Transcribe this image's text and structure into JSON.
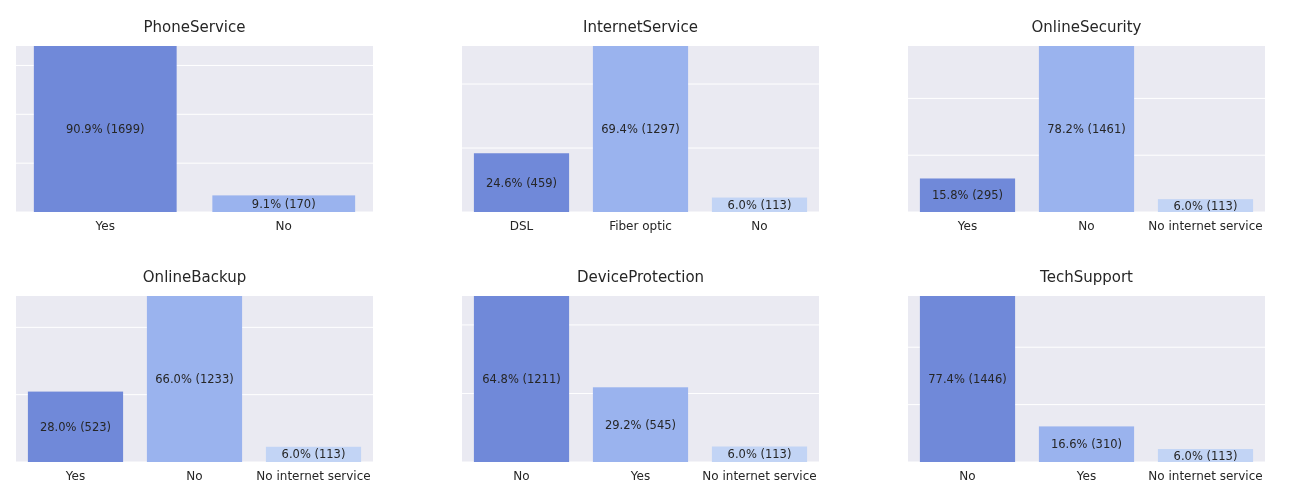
{
  "chart_data": [
    {
      "type": "bar",
      "title": "PhoneService",
      "categories": [
        "Yes",
        "No"
      ],
      "values": [
        1699,
        170
      ],
      "colors": [
        "#7089d9",
        "#9ab3ee"
      ],
      "value_labels": [
        "90.9% (1699)",
        "9.1% (170)"
      ],
      "ylim": [
        0,
        1699
      ],
      "yticks": [
        {
          "value": 0,
          "label": null
        },
        {
          "value": 500,
          "label": null
        },
        {
          "value": 1000,
          "label": null
        },
        {
          "value": 1500,
          "label": null
        }
      ],
      "grid": "y",
      "tick_labels": "x"
    },
    {
      "type": "bar",
      "title": "InternetService",
      "categories": [
        "DSL",
        "Fiber optic",
        "No"
      ],
      "values": [
        459,
        1297,
        113
      ],
      "colors": [
        "#7089d9",
        "#9ab3ee",
        "#c2d4f5"
      ],
      "value_labels": [
        "24.6% (459)",
        "69.4% (1297)",
        "6.0% (113)"
      ],
      "ylim": [
        0,
        1297
      ],
      "yticks": [
        {
          "value": 0,
          "label": null
        },
        {
          "value": 500,
          "label": null
        },
        {
          "value": 1000,
          "label": null
        }
      ],
      "grid": "y",
      "tick_labels": "x"
    },
    {
      "type": "bar",
      "title": "OnlineSecurity",
      "categories": [
        "Yes",
        "No",
        "No internet service"
      ],
      "values": [
        295,
        1461,
        113
      ],
      "colors": [
        "#7089d9",
        "#9ab3ee",
        "#c2d4f5"
      ],
      "value_labels": [
        "15.8% (295)",
        "78.2% (1461)",
        "6.0% (113)"
      ],
      "ylim": [
        0,
        1461
      ],
      "yticks": [
        {
          "value": 0,
          "label": null
        },
        {
          "value": 500,
          "label": null
        },
        {
          "value": 1000,
          "label": null
        }
      ],
      "grid": "y",
      "tick_labels": "x"
    },
    {
      "type": "bar",
      "title": "OnlineBackup",
      "categories": [
        "Yes",
        "No",
        "No internet service"
      ],
      "values": [
        523,
        1233,
        113
      ],
      "colors": [
        "#7089d9",
        "#9ab3ee",
        "#c2d4f5"
      ],
      "value_labels": [
        "28.0% (523)",
        "66.0% (1233)",
        "6.0% (113)"
      ],
      "ylim": [
        0,
        1233
      ],
      "yticks": [
        {
          "value": 0,
          "label": null
        },
        {
          "value": 500,
          "label": null
        },
        {
          "value": 1000,
          "label": null
        }
      ],
      "grid": "y",
      "tick_labels": "x"
    },
    {
      "type": "bar",
      "title": "DeviceProtection",
      "categories": [
        "No",
        "Yes",
        "No internet service"
      ],
      "values": [
        1211,
        545,
        113
      ],
      "colors": [
        "#7089d9",
        "#9ab3ee",
        "#c2d4f5"
      ],
      "value_labels": [
        "64.8% (1211)",
        "29.2% (545)",
        "6.0% (113)"
      ],
      "ylim": [
        0,
        1211
      ],
      "yticks": [
        {
          "value": 0,
          "label": null
        },
        {
          "value": 500,
          "label": null
        },
        {
          "value": 1000,
          "label": null
        }
      ],
      "grid": "y",
      "tick_labels": "x"
    },
    {
      "type": "bar",
      "title": "TechSupport",
      "categories": [
        "No",
        "Yes",
        "No internet service"
      ],
      "values": [
        1446,
        310,
        113
      ],
      "colors": [
        "#7089d9",
        "#9ab3ee",
        "#c2d4f5"
      ],
      "value_labels": [
        "77.4% (1446)",
        "16.6% (310)",
        "6.0% (113)"
      ],
      "ylim": [
        0,
        1446
      ],
      "yticks": [
        {
          "value": 0,
          "label": null
        },
        {
          "value": 500,
          "label": null
        },
        {
          "value": 1000,
          "label": null
        }
      ],
      "grid": "y",
      "tick_labels": "x"
    }
  ]
}
